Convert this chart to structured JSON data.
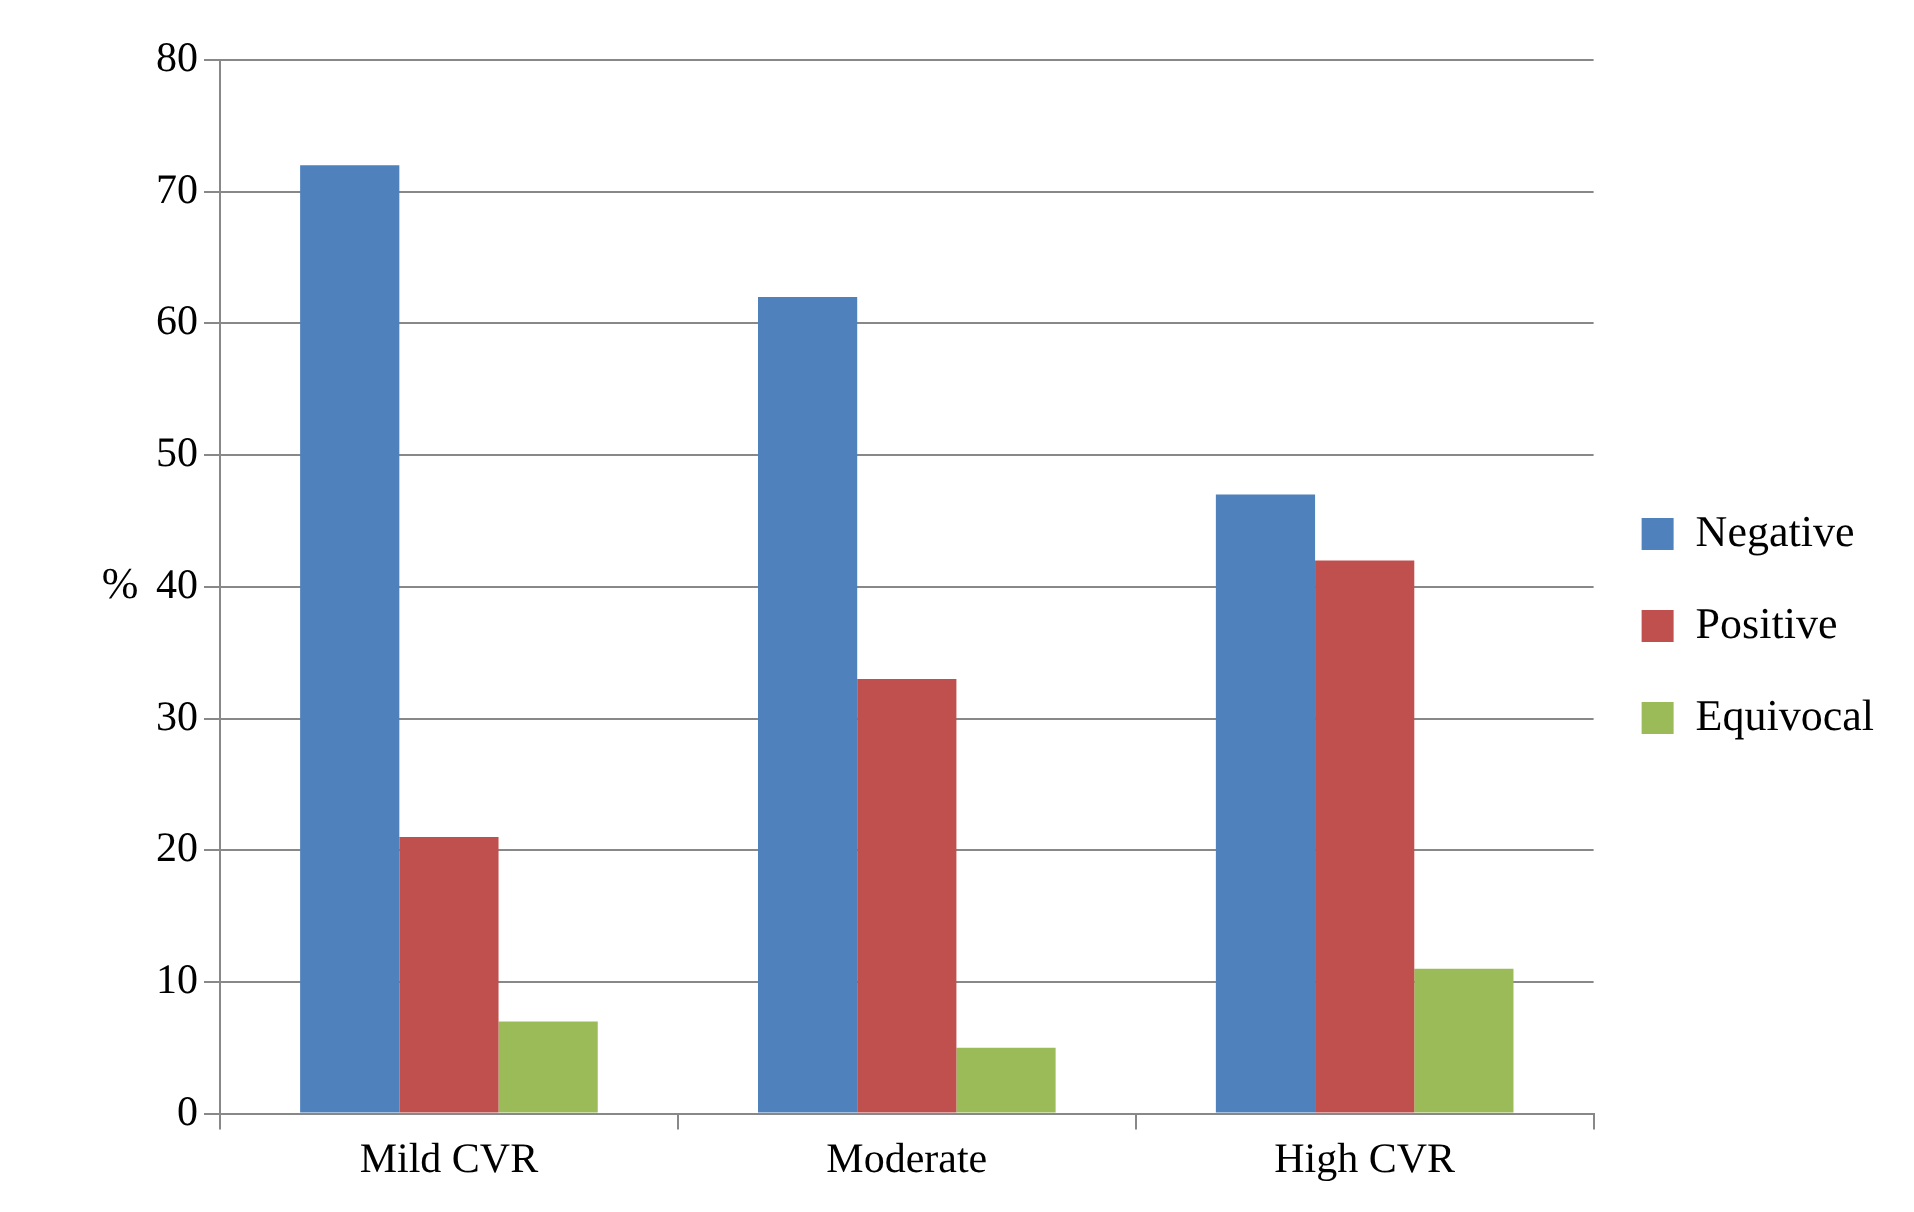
{
  "chart_data": {
    "type": "bar",
    "ylabel": "%",
    "categories": [
      "Mild CVR",
      "Moderate",
      "High CVR"
    ],
    "series": [
      {
        "name": "Negative",
        "color": "#4f81bd",
        "values": [
          72,
          62,
          47
        ]
      },
      {
        "name": "Positive",
        "color": "#c0504d",
        "values": [
          21,
          33,
          42
        ]
      },
      {
        "name": "Equivocal",
        "color": "#9bbb59",
        "values": [
          7,
          5,
          11
        ]
      }
    ],
    "ylim": [
      0,
      80
    ],
    "yticks": [
      0,
      10,
      20,
      30,
      40,
      50,
      60,
      70,
      80
    ],
    "grid": "y",
    "legend": "right"
  }
}
